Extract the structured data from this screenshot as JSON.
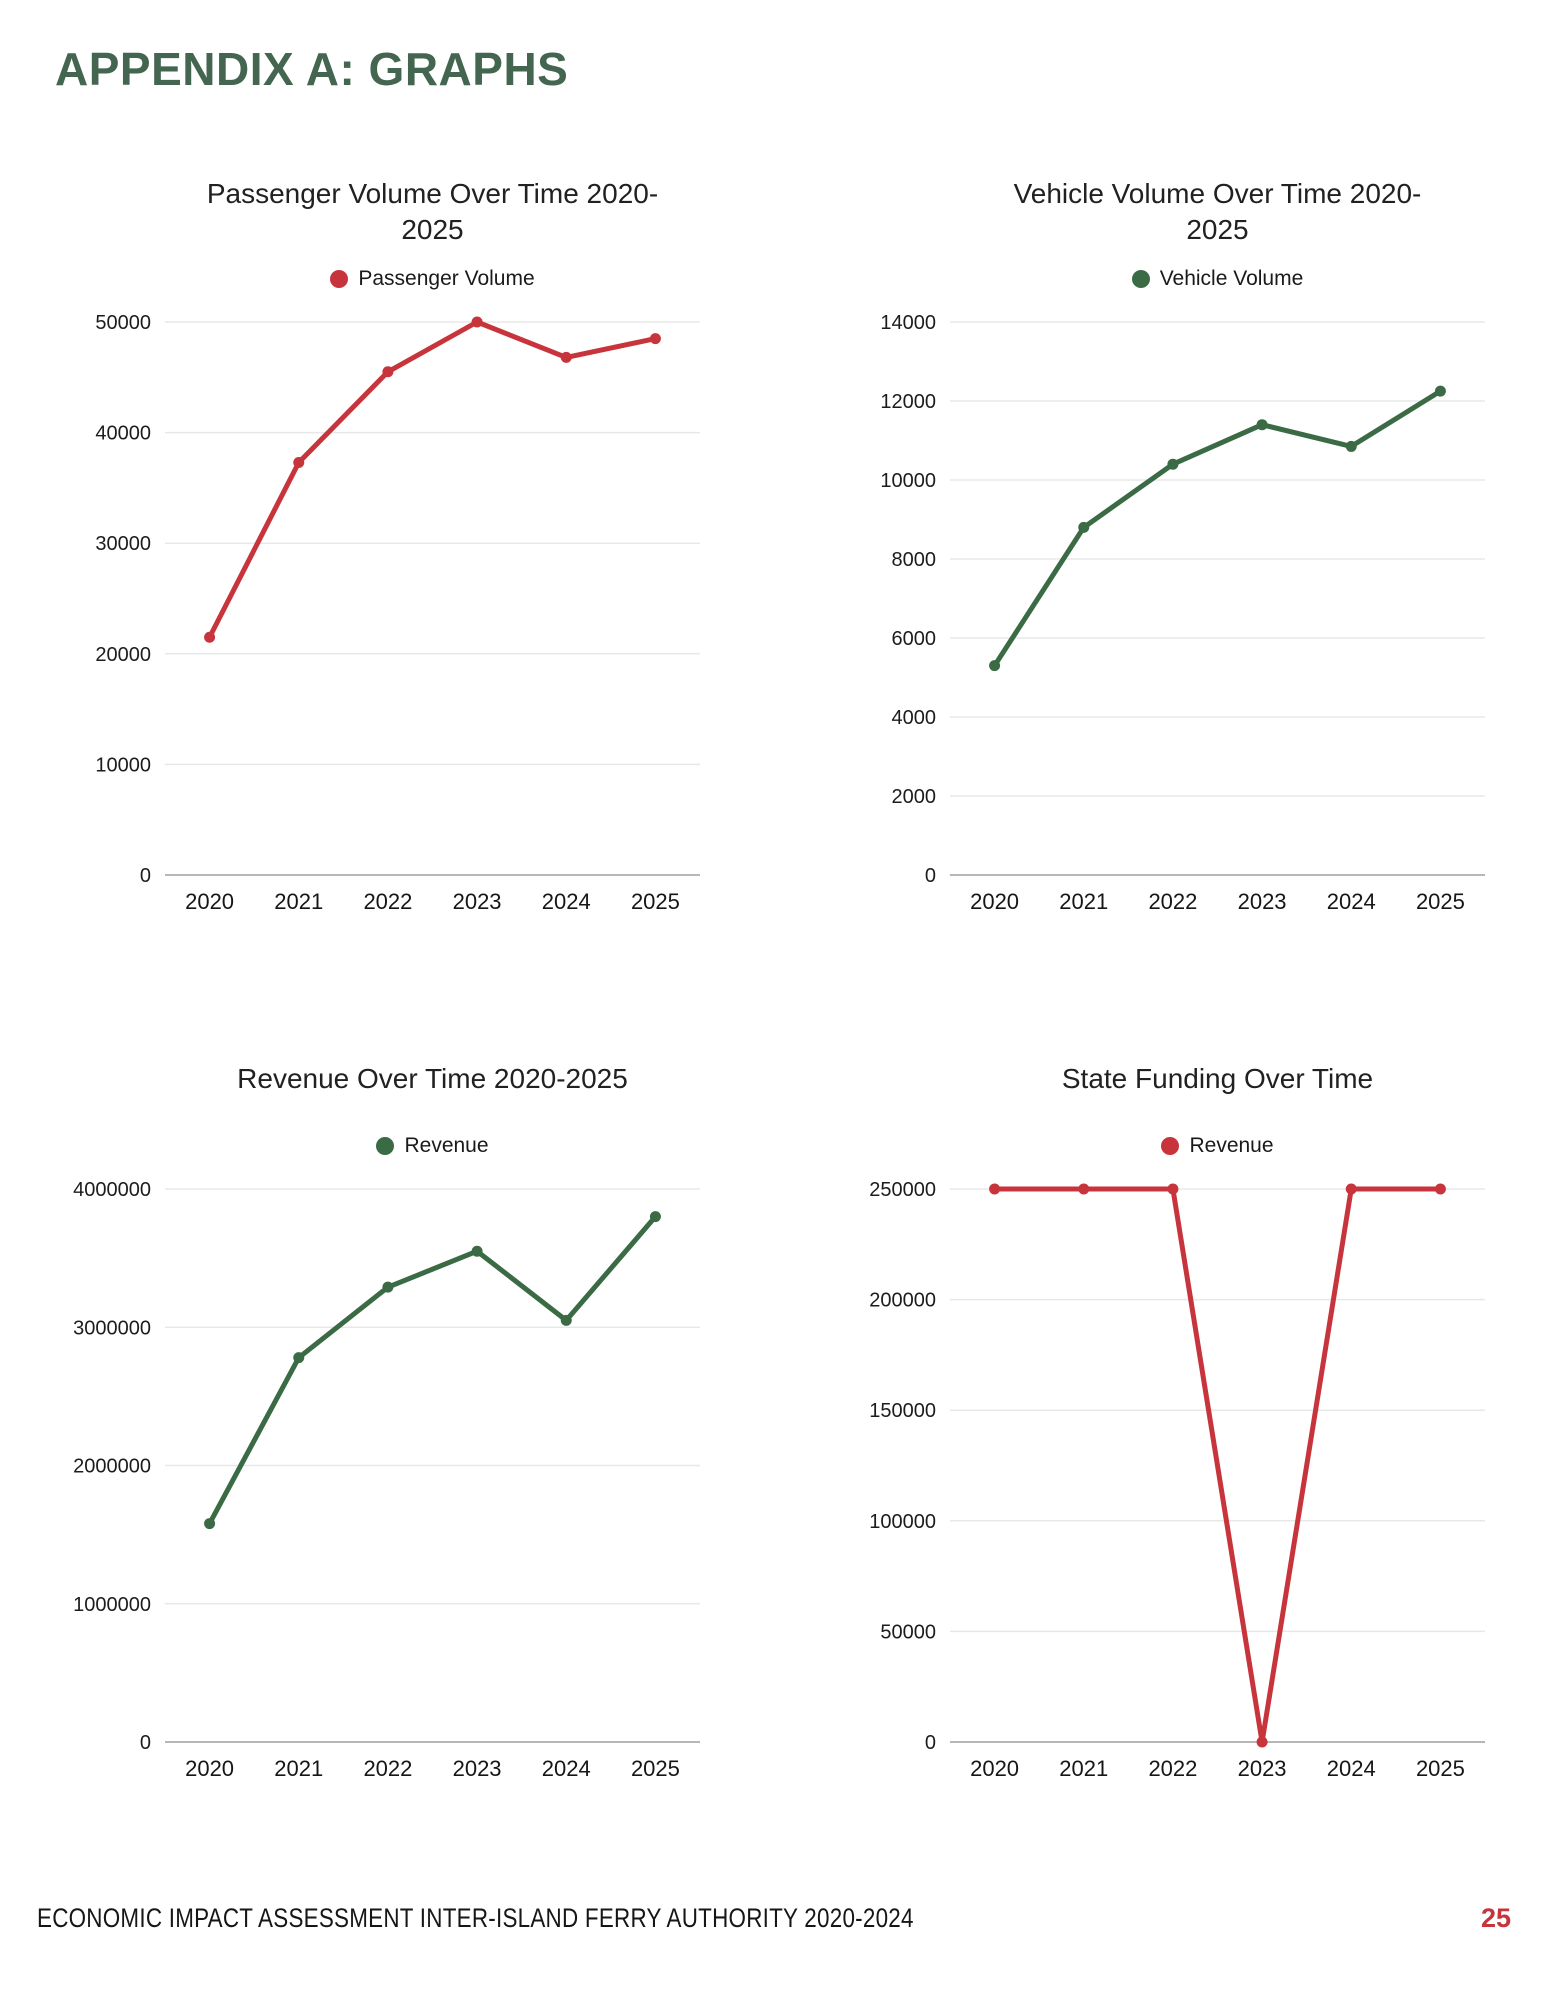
{
  "page": {
    "title": "APPENDIX A: GRAPHS",
    "footer": "ECONOMIC IMPACT ASSESSMENT INTER-ISLAND FERRY AUTHORITY 2020-2024",
    "page_number": "25",
    "title_color": "#44654F",
    "page_number_color": "#C5333B"
  },
  "chart_data": [
    {
      "type": "line",
      "title": "Passenger Volume Over Time 2020-\n2025",
      "legend": "Passenger Volume",
      "legend_position": "top",
      "color": "#C8343C",
      "categories": [
        "2020",
        "2021",
        "2022",
        "2023",
        "2024",
        "2025"
      ],
      "values": [
        21500,
        37300,
        45500,
        50000,
        46800,
        48500
      ],
      "xlabel": "",
      "ylabel": "",
      "ylim": [
        0,
        50000
      ],
      "ytick_step": 10000,
      "grid": true
    },
    {
      "type": "line",
      "title": "Vehicle Volume Over Time 2020-\n2025",
      "legend": "Vehicle Volume",
      "legend_position": "top",
      "color": "#3A6B45",
      "categories": [
        "2020",
        "2021",
        "2022",
        "2023",
        "2024",
        "2025"
      ],
      "values": [
        5300,
        8800,
        10400,
        11400,
        10850,
        12250
      ],
      "xlabel": "",
      "ylabel": "",
      "ylim": [
        0,
        14000
      ],
      "ytick_step": 2000,
      "grid": true
    },
    {
      "type": "line",
      "title": "Revenue Over Time 2020-2025",
      "legend": "Revenue",
      "legend_position": "top",
      "color": "#3A6B45",
      "categories": [
        "2020",
        "2021",
        "2022",
        "2023",
        "2024",
        "2025"
      ],
      "values": [
        1580000,
        2780000,
        3290000,
        3550000,
        3050000,
        3800000
      ],
      "xlabel": "",
      "ylabel": "",
      "ylim": [
        0,
        4000000
      ],
      "ytick_step": 1000000,
      "grid": true
    },
    {
      "type": "line",
      "title": "State Funding Over Time",
      "legend": "Revenue",
      "legend_position": "top",
      "color": "#C8343C",
      "categories": [
        "2020",
        "2021",
        "2022",
        "2023",
        "2024",
        "2025"
      ],
      "values": [
        250000,
        250000,
        250000,
        0,
        250000,
        250000
      ],
      "xlabel": "",
      "ylabel": "",
      "ylim": [
        0,
        250000
      ],
      "ytick_step": 50000,
      "grid": true
    }
  ],
  "style": {
    "gridline_color": "#e8e8e8",
    "baseline_color": "#b7b7b7",
    "tick_label_color": "#1c1c1c",
    "line_width": 5,
    "point_radius": 5.5
  }
}
